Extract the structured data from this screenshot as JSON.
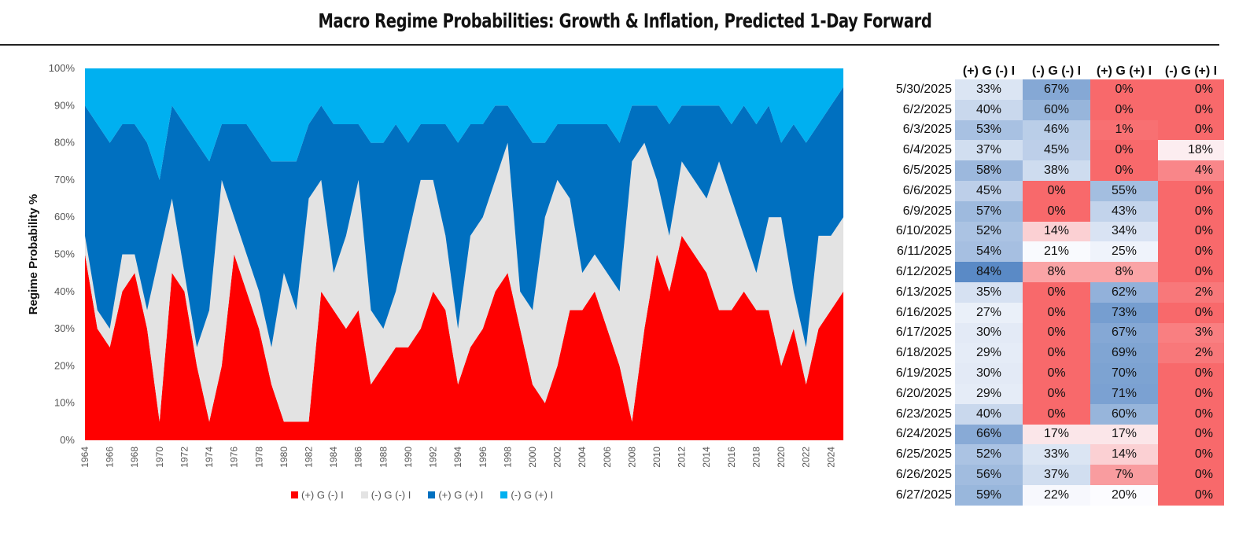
{
  "title": "Macro Regime Probabilities: Growth & Inflation, Predicted 1-Day Forward",
  "chart_data": {
    "type": "area",
    "stacked": true,
    "title": "Macro Regime Probabilities: Growth & Inflation, Predicted 1-Day Forward",
    "xlabel": "",
    "ylabel": "Regime Probability %",
    "ylim": [
      0,
      100
    ],
    "yticks": [
      "0%",
      "10%",
      "20%",
      "30%",
      "40%",
      "50%",
      "60%",
      "70%",
      "80%",
      "90%",
      "100%"
    ],
    "xticks": [
      "1964",
      "1966",
      "1968",
      "1970",
      "1972",
      "1974",
      "1976",
      "1978",
      "1980",
      "1982",
      "1984",
      "1986",
      "1988",
      "1990",
      "1992",
      "1994",
      "1996",
      "1998",
      "2000",
      "2002",
      "2004",
      "2006",
      "2008",
      "2010",
      "2012",
      "2014",
      "2016",
      "2018",
      "2020",
      "2022",
      "2024"
    ],
    "xlim": [
      1964,
      2025.5
    ],
    "legend_position": "bottom",
    "x": [
      1964,
      1965,
      1966,
      1967,
      1968,
      1969,
      1970,
      1971,
      1972,
      1973,
      1974,
      1975,
      1976,
      1977,
      1978,
      1979,
      1980,
      1981,
      1982,
      1983,
      1984,
      1985,
      1986,
      1987,
      1988,
      1989,
      1990,
      1991,
      1992,
      1993,
      1994,
      1995,
      1996,
      1997,
      1998,
      1999,
      2000,
      2001,
      2002,
      2003,
      2004,
      2005,
      2006,
      2007,
      2008,
      2009,
      2010,
      2011,
      2012,
      2013,
      2014,
      2015,
      2016,
      2017,
      2018,
      2019,
      2020,
      2021,
      2022,
      2023,
      2024,
      2025
    ],
    "series": [
      {
        "name": "(+) G (-) I",
        "color": "#FF0000",
        "values": [
          50,
          30,
          25,
          40,
          45,
          30,
          5,
          45,
          40,
          20,
          5,
          20,
          50,
          40,
          30,
          15,
          5,
          5,
          5,
          40,
          35,
          30,
          35,
          15,
          20,
          25,
          25,
          30,
          40,
          35,
          15,
          25,
          30,
          40,
          45,
          30,
          15,
          10,
          20,
          35,
          35,
          40,
          30,
          20,
          5,
          30,
          50,
          40,
          55,
          50,
          45,
          35,
          35,
          40,
          35,
          35,
          20,
          30,
          15,
          30,
          35,
          40
        ]
      },
      {
        "name": "(-) G (-) I",
        "color": "#E3E3E3",
        "values": [
          5,
          5,
          5,
          10,
          5,
          5,
          45,
          20,
          5,
          5,
          30,
          50,
          10,
          10,
          10,
          10,
          40,
          30,
          60,
          30,
          10,
          25,
          35,
          20,
          10,
          15,
          30,
          40,
          30,
          20,
          15,
          30,
          30,
          30,
          35,
          10,
          20,
          50,
          50,
          30,
          10,
          10,
          15,
          20,
          70,
          50,
          20,
          15,
          20,
          20,
          20,
          40,
          30,
          15,
          10,
          25,
          40,
          10,
          10,
          25,
          20,
          20
        ]
      },
      {
        "name": "(+) G (+) I",
        "color": "#0070C0",
        "values": [
          35,
          50,
          50,
          35,
          35,
          45,
          20,
          25,
          40,
          55,
          40,
          15,
          25,
          35,
          40,
          50,
          30,
          40,
          20,
          20,
          40,
          30,
          15,
          45,
          50,
          45,
          25,
          15,
          15,
          30,
          50,
          30,
          25,
          20,
          10,
          45,
          45,
          20,
          15,
          20,
          40,
          35,
          40,
          40,
          15,
          10,
          20,
          30,
          15,
          20,
          25,
          15,
          20,
          35,
          40,
          30,
          20,
          45,
          55,
          30,
          35,
          35
        ]
      },
      {
        "name": "(-) G (+) I",
        "color": "#00B0F0",
        "values": [
          10,
          15,
          20,
          15,
          15,
          20,
          30,
          10,
          15,
          20,
          25,
          15,
          15,
          15,
          20,
          25,
          25,
          25,
          15,
          10,
          15,
          15,
          15,
          20,
          20,
          15,
          20,
          15,
          15,
          15,
          20,
          15,
          15,
          10,
          10,
          15,
          20,
          20,
          15,
          15,
          15,
          15,
          15,
          20,
          10,
          10,
          10,
          15,
          10,
          10,
          10,
          10,
          15,
          10,
          15,
          10,
          20,
          15,
          20,
          15,
          10,
          5
        ]
      }
    ],
    "table": {
      "headers": [
        "(+) G (-) I",
        "(-) G (-) I",
        "(+) G (+) I",
        "(-) G (+) I"
      ],
      "rows": [
        {
          "date": "5/30/2025",
          "values": [
            "33%",
            "67%",
            "0%",
            "0%"
          ]
        },
        {
          "date": "6/2/2025",
          "values": [
            "40%",
            "60%",
            "0%",
            "0%"
          ]
        },
        {
          "date": "6/3/2025",
          "values": [
            "53%",
            "46%",
            "1%",
            "0%"
          ]
        },
        {
          "date": "6/4/2025",
          "values": [
            "37%",
            "45%",
            "0%",
            "18%"
          ]
        },
        {
          "date": "6/5/2025",
          "values": [
            "58%",
            "38%",
            "0%",
            "4%"
          ]
        },
        {
          "date": "6/6/2025",
          "values": [
            "45%",
            "0%",
            "55%",
            "0%"
          ]
        },
        {
          "date": "6/9/2025",
          "values": [
            "57%",
            "0%",
            "43%",
            "0%"
          ]
        },
        {
          "date": "6/10/2025",
          "values": [
            "52%",
            "14%",
            "34%",
            "0%"
          ]
        },
        {
          "date": "6/11/2025",
          "values": [
            "54%",
            "21%",
            "25%",
            "0%"
          ]
        },
        {
          "date": "6/12/2025",
          "values": [
            "84%",
            "8%",
            "8%",
            "0%"
          ]
        },
        {
          "date": "6/13/2025",
          "values": [
            "35%",
            "0%",
            "62%",
            "2%"
          ]
        },
        {
          "date": "6/16/2025",
          "values": [
            "27%",
            "0%",
            "73%",
            "0%"
          ]
        },
        {
          "date": "6/17/2025",
          "values": [
            "30%",
            "0%",
            "67%",
            "3%"
          ]
        },
        {
          "date": "6/18/2025",
          "values": [
            "29%",
            "0%",
            "69%",
            "2%"
          ]
        },
        {
          "date": "6/19/2025",
          "values": [
            "30%",
            "0%",
            "70%",
            "0%"
          ]
        },
        {
          "date": "6/20/2025",
          "values": [
            "29%",
            "0%",
            "71%",
            "0%"
          ]
        },
        {
          "date": "6/23/2025",
          "values": [
            "40%",
            "0%",
            "60%",
            "0%"
          ]
        },
        {
          "date": "6/24/2025",
          "values": [
            "66%",
            "17%",
            "17%",
            "0%"
          ]
        },
        {
          "date": "6/25/2025",
          "values": [
            "52%",
            "33%",
            "14%",
            "0%"
          ]
        },
        {
          "date": "6/26/2025",
          "values": [
            "56%",
            "37%",
            "7%",
            "0%"
          ]
        },
        {
          "date": "6/27/2025",
          "values": [
            "59%",
            "22%",
            "20%",
            "0%"
          ]
        }
      ],
      "scale_colors": {
        "low": "#F8696B",
        "mid": "#FCFCFF",
        "high": "#5A8AC6"
      }
    }
  }
}
